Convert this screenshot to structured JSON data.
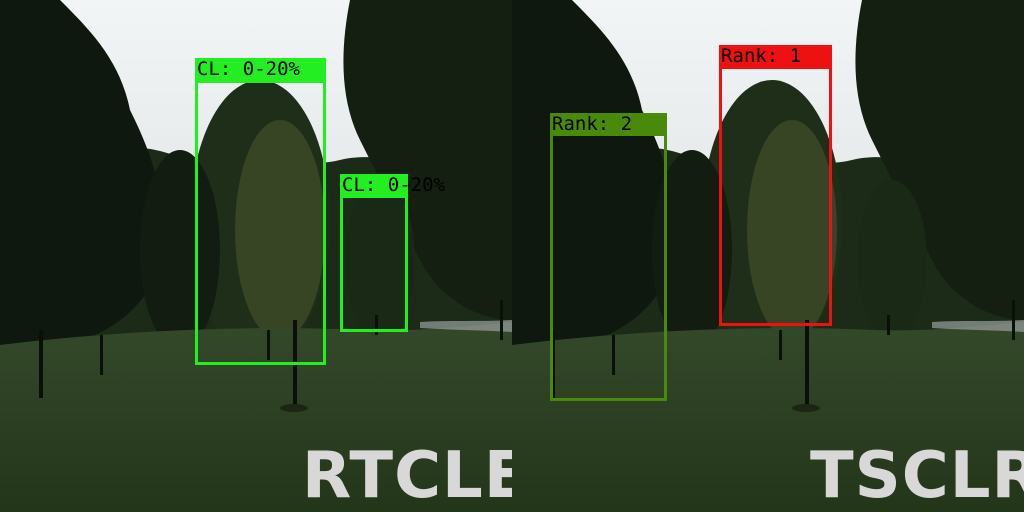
{
  "panels": {
    "left": {
      "title": "RTCLE",
      "detections": [
        {
          "label": "CL: 0-20%",
          "color": "#22ee22"
        },
        {
          "label": "CL: 0-20%",
          "color": "#22ee22"
        }
      ]
    },
    "right": {
      "title": "TSCLR",
      "detections": [
        {
          "label": "Rank: 2",
          "color": "#4a8a0a"
        },
        {
          "label": "Rank: 1",
          "color": "#ee1111"
        }
      ]
    }
  },
  "colors": {
    "sky": "#e9eef0",
    "foliage_dark": "#101a10",
    "foliage_mid": "#2b3a22",
    "grass": "#2f4421",
    "title_text": "#d8d8d8"
  }
}
